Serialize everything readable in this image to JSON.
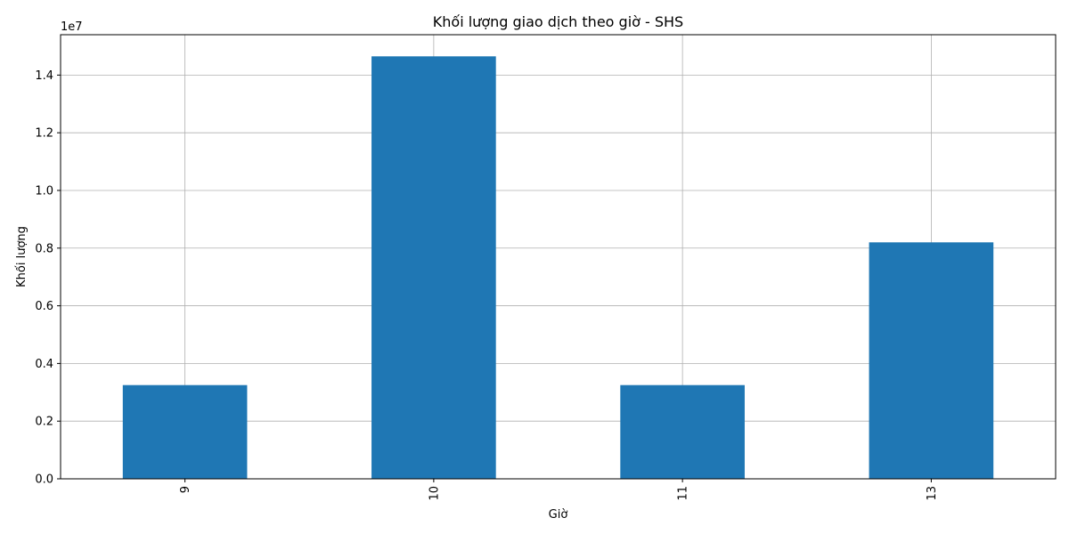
{
  "chart_data": {
    "type": "bar",
    "title": "Khối lượng giao dịch theo giờ - SHS",
    "xlabel": "Giờ",
    "ylabel": "Khối lượng",
    "offset_label": "1e7",
    "categories": [
      "9",
      "10",
      "11",
      "13"
    ],
    "values": [
      3250000,
      14650000,
      3250000,
      8200000
    ],
    "ylim": [
      0,
      15400000
    ],
    "yticks": [
      0,
      2000000,
      4000000,
      6000000,
      8000000,
      10000000,
      12000000,
      14000000
    ],
    "ytick_labels": [
      "0.0",
      "0.2",
      "0.4",
      "0.6",
      "0.8",
      "1.0",
      "1.2",
      "1.4"
    ],
    "bar_color": "#1f77b4",
    "grid": true,
    "xtick_rotation": "vertical"
  }
}
